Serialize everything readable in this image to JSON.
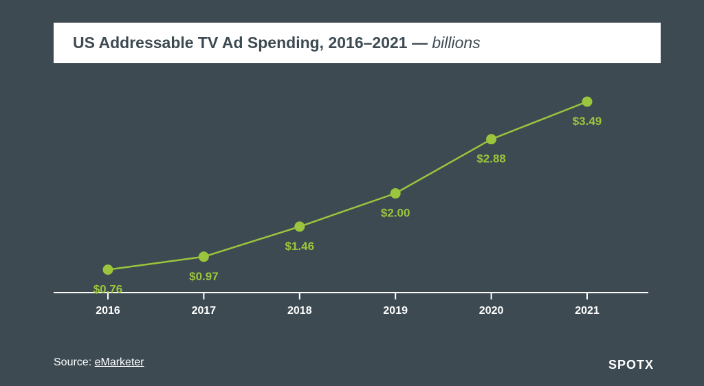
{
  "header": {
    "title": "US Addressable TV Ad Spending, 2016–2021 —",
    "unit": "billions"
  },
  "footer": {
    "source_prefix": "Source: ",
    "source_link": "eMarketer",
    "brand": "SPOTX"
  },
  "colors": {
    "background": "#3d4a52",
    "accent": "#9bc53d",
    "axis": "#ffffff",
    "title_box": "#ffffff"
  },
  "chart_data": {
    "type": "line",
    "title": "US Addressable TV Ad Spending, 2016–2021 — billions",
    "x": [
      "2016",
      "2017",
      "2018",
      "2019",
      "2020",
      "2021"
    ],
    "series": [
      {
        "values": [
          0.76,
          0.97,
          1.46,
          2.0,
          2.88,
          3.49
        ],
        "labels": [
          "$0.76",
          "$0.97",
          "$1.46",
          "$2.00",
          "$2.88",
          "$3.49"
        ]
      }
    ],
    "xlabel": "",
    "ylabel": "",
    "grid": false,
    "legend": "none"
  }
}
